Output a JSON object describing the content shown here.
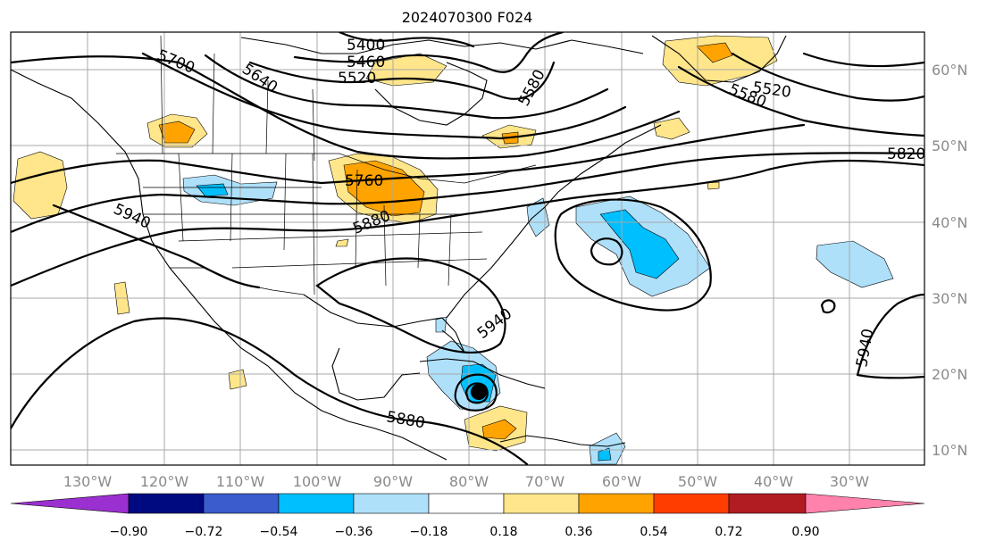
{
  "title": "2024070300 F024",
  "map": {
    "lon_labels": [
      "130°W",
      "120°W",
      "110°W",
      "100°W",
      "90°W",
      "80°W",
      "70°W",
      "60°W",
      "50°W",
      "40°W",
      "30°W"
    ],
    "lat_labels": [
      "60°N",
      "50°N",
      "40°N",
      "30°N",
      "20°N",
      "10°N"
    ],
    "contour_labels": [
      "5400",
      "5460",
      "5520",
      "5580",
      "5700",
      "5640",
      "5760",
      "5880",
      "5940",
      "5820",
      "5580",
      "5520",
      "5940",
      "5940",
      "5880"
    ],
    "storm_marker": {
      "lon": -78,
      "lat": 17.5
    }
  },
  "colorbar": {
    "ticks": [
      "−0.90",
      "−0.72",
      "−0.54",
      "−0.36",
      "−0.18",
      "0.18",
      "0.36",
      "0.54",
      "0.72",
      "0.90"
    ],
    "colors": [
      "#9b30d0",
      "#000a80",
      "#3a5ccc",
      "#00bfff",
      "#aee0fa",
      "#ffffff",
      "#ffe68a",
      "#ffa300",
      "#ff3d00",
      "#b01c22",
      "#ff82ad"
    ]
  }
}
